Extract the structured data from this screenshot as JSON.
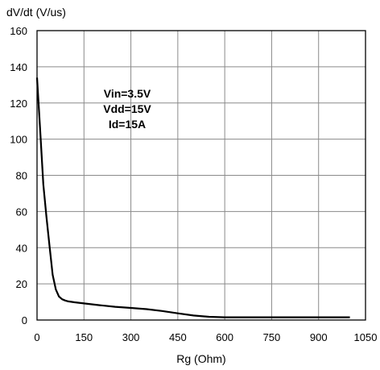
{
  "chart_data": {
    "type": "line",
    "ylabel": "dV/dt (V/us)",
    "xlabel": "Rg (Ohm)",
    "xlim": [
      0,
      1050
    ],
    "ylim": [
      0,
      160
    ],
    "x_ticks": [
      0,
      150,
      300,
      450,
      600,
      750,
      900,
      1050
    ],
    "y_ticks": [
      0,
      20,
      40,
      60,
      80,
      100,
      120,
      140,
      160
    ],
    "grid": true,
    "annotations": [
      "Vin=3.5V",
      "Vdd=15V",
      "Id=15A"
    ],
    "series": [
      {
        "x": [
          0,
          10,
          20,
          30,
          40,
          50,
          60,
          70,
          80,
          90,
          100,
          120,
          150,
          200,
          250,
          300,
          350,
          400,
          450,
          500,
          550,
          600,
          700,
          800,
          900,
          1000
        ],
        "y": [
          134,
          105,
          75,
          57,
          41,
          25,
          17,
          13,
          11.5,
          10.8,
          10.3,
          9.8,
          9.2,
          8.2,
          7.3,
          6.7,
          6.0,
          5.0,
          3.7,
          2.5,
          1.8,
          1.5,
          1.5,
          1.5,
          1.5,
          1.5
        ],
        "color": "#000000"
      }
    ]
  }
}
